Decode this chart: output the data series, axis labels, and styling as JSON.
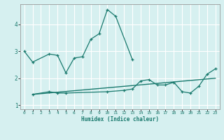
{
  "title": "",
  "xlabel": "Humidex (Indice chaleur)",
  "bg_color": "#d6f0f0",
  "grid_color": "#ffffff",
  "line_color": "#1a7a6e",
  "xlim": [
    -0.5,
    23.5
  ],
  "ylim": [
    0.85,
    4.75
  ],
  "yticks": [
    1,
    2,
    3,
    4
  ],
  "xticks": [
    0,
    1,
    2,
    3,
    4,
    5,
    6,
    7,
    8,
    9,
    10,
    11,
    12,
    13,
    14,
    15,
    16,
    17,
    18,
    19,
    20,
    21,
    22,
    23
  ],
  "line1_x": [
    0,
    1,
    3,
    4,
    5,
    6,
    7,
    8,
    9,
    10,
    11,
    13
  ],
  "line1_y": [
    3.0,
    2.6,
    2.9,
    2.85,
    2.2,
    2.75,
    2.8,
    3.45,
    3.65,
    4.55,
    4.3,
    2.7
  ],
  "line2_x": [
    1,
    3,
    4,
    5,
    10,
    12,
    13,
    14,
    15,
    16,
    17,
    18,
    19,
    20,
    21,
    22,
    23
  ],
  "line2_y": [
    1.4,
    1.5,
    1.45,
    1.45,
    1.5,
    1.55,
    1.6,
    1.9,
    1.95,
    1.75,
    1.75,
    1.85,
    1.5,
    1.45,
    1.7,
    2.15,
    2.35
  ],
  "line3_x": [
    1,
    23
  ],
  "line3_y": [
    1.4,
    2.0
  ]
}
